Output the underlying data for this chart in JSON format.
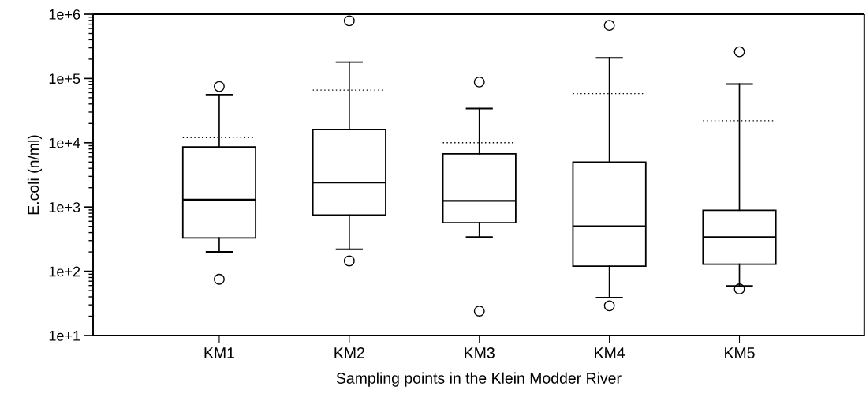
{
  "chart_data": {
    "type": "box",
    "xlabel": "Sampling points in the Klein Modder River",
    "ylabel": "E.coli (n/ml)",
    "categories": [
      "KM1",
      "KM2",
      "KM3",
      "KM4",
      "KM5"
    ],
    "boxes": [
      {
        "low": 200,
        "q1": 330,
        "median": 1300,
        "q3": 8600,
        "high": 56000,
        "mean": 12000,
        "outliers": [
          75000,
          75
        ]
      },
      {
        "low": 220,
        "q1": 750,
        "median": 2400,
        "q3": 16000,
        "high": 180000,
        "mean": 66000,
        "outliers": [
          790000,
          145
        ]
      },
      {
        "low": 340,
        "q1": 570,
        "median": 1250,
        "q3": 6700,
        "high": 34000,
        "mean": 10000,
        "outliers": [
          88000,
          24
        ]
      },
      {
        "low": 39,
        "q1": 120,
        "median": 500,
        "q3": 5000,
        "high": 210000,
        "mean": 58000,
        "outliers": [
          670000,
          29
        ]
      },
      {
        "low": 59,
        "q1": 129,
        "median": 340,
        "q3": 890,
        "high": 82000,
        "mean": 22000,
        "outliers": [
          260000,
          53
        ]
      }
    ],
    "log": "y",
    "ylim": [
      10,
      1000000
    ],
    "yticks": [
      {
        "value": 10,
        "label": "1e+1"
      },
      {
        "value": 100,
        "label": "1e+2"
      },
      {
        "value": 1000,
        "label": "1e+3"
      },
      {
        "value": 10000,
        "label": "1e+4"
      },
      {
        "value": 100000,
        "label": "1e+5"
      },
      {
        "value": 1000000,
        "label": "1e+6"
      }
    ],
    "grid": false,
    "legend": false
  }
}
